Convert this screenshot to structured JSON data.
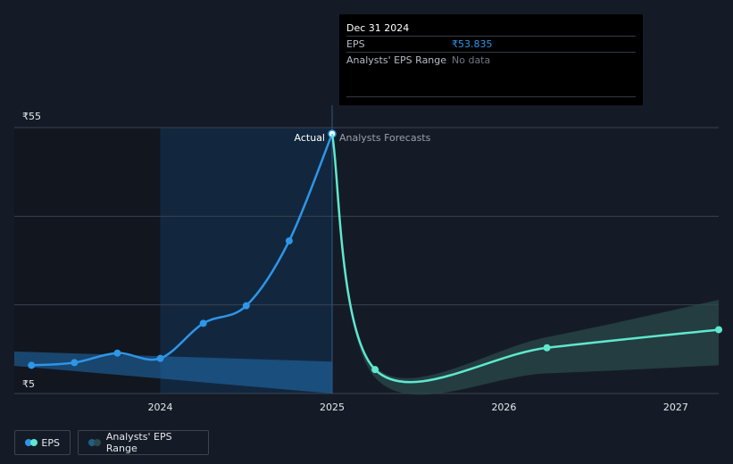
{
  "tooltip": {
    "date": "Dec 31 2024",
    "eps_label": "EPS",
    "eps_value": "₹53.835",
    "range_label": "Analysts' EPS Range",
    "range_value": "No data"
  },
  "legend": {
    "eps_label": "EPS",
    "range_label": "Analysts' EPS Range"
  },
  "colors": {
    "actual": "#2e96e8",
    "forecast": "#5ee8cf",
    "range_past": "#1f6fb0",
    "range_forecast": "#2a4a4a",
    "highlight": "#13375a"
  },
  "chart_data": {
    "type": "line",
    "y_tick_labels": [
      "₹55",
      "₹5"
    ],
    "ylim": [
      5,
      55
    ],
    "x_tick_labels": [
      "2024",
      "2025",
      "2026",
      "2027"
    ],
    "xlim": [
      2023.15,
      2027.25
    ],
    "divider_labels": {
      "actual": "Actual",
      "forecast": "Analysts Forecasts"
    },
    "divider_x": 2025.0,
    "series": [
      {
        "name": "EPS",
        "role": "actual",
        "x": [
          2023.25,
          2023.5,
          2023.75,
          2024.0,
          2024.25,
          2024.5,
          2024.75,
          2025.0
        ],
        "y": [
          10.3,
          10.8,
          12.6,
          11.6,
          18.2,
          21.5,
          33.7,
          53.835
        ]
      },
      {
        "name": "EPS",
        "role": "forecast",
        "x": [
          2025.0,
          2025.25,
          2026.25,
          2027.25
        ],
        "y": [
          53.835,
          9.5,
          13.6,
          17.0
        ]
      }
    ],
    "range_bands": [
      {
        "role": "past",
        "x": [
          2023.15,
          2025.0
        ],
        "upper": [
          12.9,
          11.0
        ],
        "lower": [
          10.2,
          5.0
        ]
      },
      {
        "role": "forecast",
        "x": [
          2025.0,
          2025.25,
          2026.25,
          2027.25
        ],
        "upper": [
          53.835,
          10.0,
          15.6,
          22.6
        ],
        "lower": [
          53.835,
          8.0,
          8.8,
          10.3
        ]
      }
    ],
    "grid": true
  }
}
